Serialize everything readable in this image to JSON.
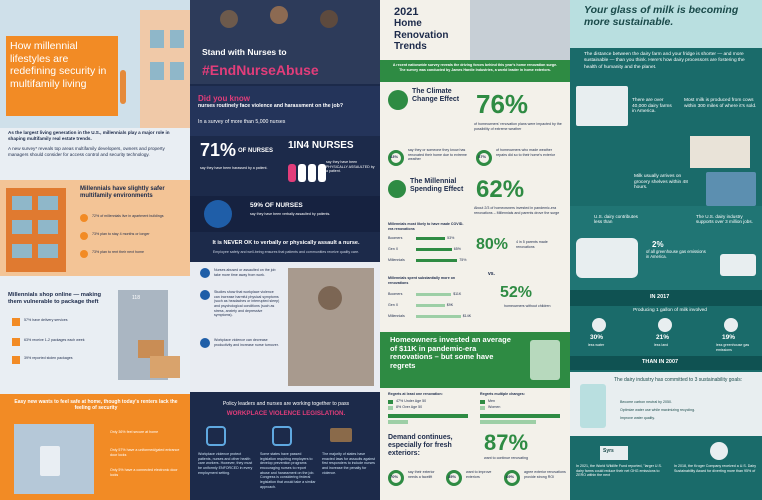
{
  "panel1": {
    "title": "How millennial lifestyles are redefining security in multifamily living",
    "intro1": "As the largest living generation in the U.S., millennials play a major role in shaping multifamily real estate trends.",
    "intro2": "A new survey* reveals top areas multifamily developers, owners and property managers should consider for access control and security technology.",
    "safe_heading": "Millennials have slightly safer multifamily environments",
    "safe_stats": [
      "72% of millennials live in apartment buildings",
      "73% plan to stay 4 months or longer",
      "73% plan to rent their next home"
    ],
    "online_heading": "Millennials shop online — making them vulnerable to package theft",
    "online_stats": [
      "57% have delivery services",
      "63% receive 1-2 packages each week",
      "39% reported stolen packages"
    ],
    "door_number": "118",
    "footer_heading": "Easy new wants to feel safe at home, though today's renters lack the feeling of security",
    "footer_stats": [
      "Only 36% feel secure at home",
      "Only 57% have a uniformed/gated entrance door locks",
      "Only 5% have a connected electronic door locks"
    ]
  },
  "panel2": {
    "title_small": "Stand with Nurses to",
    "title_big": "#EndNurseAbuse",
    "did_you_know": "Did you know",
    "dyk_text": "nurses routinely face violence and harassment on the job?",
    "survey": "In a survey of more than 5,000 nurses",
    "stat71_big": "71%",
    "stat71_of": "OF NURSES",
    "stat71_text": "say they have been harassed by a patient.",
    "stat1in4": "1IN4 NURSES",
    "stat1in4_text": "say they have been PHYSICALLY ASSAULTED by a patient.",
    "stat59": "59% OF NURSES",
    "stat59_text": "say they have been verbally assaulted by patients.",
    "never_ok": "It is NEVER OK to verbally or physically assault a nurse.",
    "never_ok_sub": "Employee safety and well-being ensures that patients and communities receive quality care.",
    "facts": [
      "Nurses abused or assaulted on the job take more time away from work.",
      "Studies show that workplace violence can increase harmful physical symptoms (such as headaches or interrupted sleep) and psychological conditions (such as stress, anxiety and depressive symptoms).",
      "Workplace violence can decrease productivity and increase nurse turnover."
    ],
    "policy": "Policy leaders and nurses are working together to pass",
    "policy_big": "WORKPLACE VIOLENCE LEGISLATION.",
    "bottom_cols": [
      "Workplace violence protect patients, nurses and other health care workers. However, they must be uniformly ENFORCED in every employment setting.",
      "Some states have passed legislation requiring employers to develop prevention programs encouraging nurses to report abuse and harassment on the job. Congress is considering federal legislation that would take a similar approach.",
      "The majority of states have enacted laws for assaults against first responders to include nurses and increase the penalty for violence."
    ]
  },
  "panel3": {
    "year": "2021",
    "title": "Home Renovation Trends",
    "intro": "A recent nationwide survey reveals the driving forces behind this year's home renovation surge. The survey was conducted by James Hardie Industries, a world leader in home exteriors.",
    "climate_heading": "The Climate Change Effect",
    "stat76": "76%",
    "stat76_text": "of homeowners' renovation plans were impacted by the possibility of extreme weather",
    "pct43": "43%",
    "pct43_text": "say they or someone they know has renovated their home due to extreme weather",
    "pct57": "57%",
    "pct57_text": "of homeowners who made weather repairs did so to their home's exterior",
    "millennial_heading": "The Millennial Spending Effect",
    "stat62": "62%",
    "stat62_text": "About 2/3 of homeowners invested in pandemic-era renovations – Millennials and parents drove the surge",
    "covid_label": "Millennials most likely to have made COVID-era renovations",
    "gen_labels": [
      "Boomers",
      "Gen X",
      "Millennials"
    ],
    "gen_values": [
      53,
      65,
      75
    ],
    "stat80": "80%",
    "stat80_text": "4 in 5 parents made renovations",
    "vs": "vs.",
    "stat52": "52%",
    "stat52_text": "homeowners without children",
    "spent_label": "Millennials spent substantially more on renovations",
    "spent_values": [
      "$11K",
      "$9K",
      "$14K"
    ],
    "invest_heading": "Homeowners invested an average of $11K in pandemic-era renovations – but some have regrets",
    "regrets_label": "Regrets at least one renovation:",
    "regrets_label2": "Regrets multiple changes:",
    "regret_legend": [
      "47% Under Age 50",
      "8% Over Age 50"
    ],
    "regret_legend2": [
      "Men",
      "Women"
    ],
    "demand_heading": "Demand continues, especially for fresh exteriors:",
    "stat87": "87%",
    "stat87_text": "want to continue renovating",
    "bottom_pcts": [
      "70%",
      "35%",
      "69%"
    ],
    "bottom_texts": [
      "say their exterior needs a facelift",
      "want to improve exteriors",
      "agree exterior renovations provide strong ROI"
    ]
  },
  "panel4": {
    "title": "Your glass of milk is becoming more sustainable.",
    "intro": "The distance between the dairy farm and your fridge is shorter — and more sustainable — than you think. Here's how dairy processors are fostering the health of humanity and the planet.",
    "farms": "There are over 40,000 dairy farms in America.",
    "milk_cows": "Most milk is produced from cows within 300 miles of where it's sold.",
    "shelves": "Milk usually arrives on grocery shelves within 48 hours.",
    "emissions": "U.S. dairy contributes less than",
    "emissions_pct": "2%",
    "emissions_text": "of all greenhouse gas emissions in America.",
    "jobs": "The U.S. dairy industry supports over 3 million jobs.",
    "in_2017": "IN 2017",
    "gallon": "Producing 1 gallon of milk involved",
    "savings_pct": [
      "30%",
      "21%",
      "19%"
    ],
    "savings_text": [
      "less water",
      "less land",
      "less greenhouse gas emissions"
    ],
    "than_2007": "THAN IN 2007",
    "goals_heading": "The dairy industry has committed to 3 sustainability goals:",
    "goals": [
      "Become carbon neutral by 2050.",
      "Optimize water use while maximizing recycling.",
      "Improve water quality."
    ],
    "brand": "Syrs",
    "wwf": "In 2021, the World Wildlife Fund reported, \"larger U.S. dairy farms could reduce their net GHG emissions to ZERO within the next",
    "kroger": "In 2018, the Kroger Company received a U.S. Dairy Sustainability Award for diverting more than 95% of"
  },
  "colors": {
    "orange": "#f28b25",
    "teal": "#1a6b6a",
    "navy": "#1c2a4a",
    "green": "#2e8b43",
    "pink": "#e23d7a"
  }
}
